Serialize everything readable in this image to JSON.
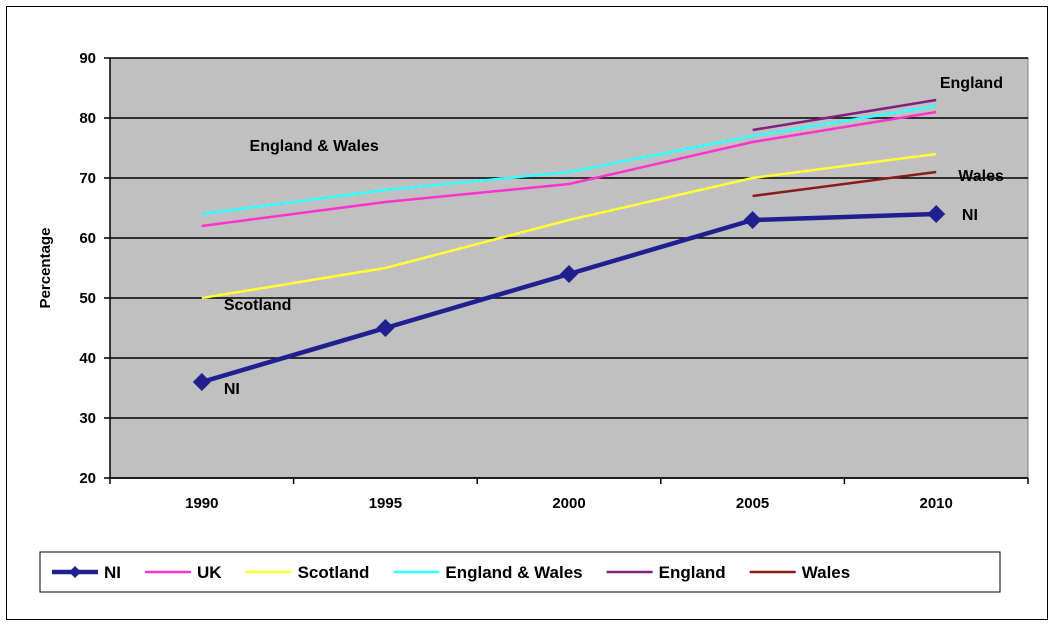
{
  "chart_data": {
    "type": "line",
    "title": "",
    "xlabel": "",
    "ylabel": "Percentage",
    "x": [
      1990,
      1995,
      2000,
      2005,
      2010
    ],
    "xticks": [
      "1990",
      "1995",
      "2000",
      "2005",
      "2010"
    ],
    "ylim": [
      20,
      90
    ],
    "yticks": [
      "20",
      "30",
      "40",
      "50",
      "60",
      "70",
      "80",
      "90"
    ],
    "grid": true,
    "legend": "bottom",
    "series": [
      {
        "name": "NI",
        "color": "#1f1f8f",
        "marker": "diamond",
        "x": [
          1990,
          1995,
          2000,
          2005,
          2010
        ],
        "values": [
          36,
          45,
          54,
          63,
          64
        ]
      },
      {
        "name": "UK",
        "color": "#ff33cc",
        "x": [
          1990,
          1995,
          2000,
          2005,
          2010
        ],
        "values": [
          62,
          66,
          69,
          76,
          81
        ]
      },
      {
        "name": "Scotland",
        "color": "#ffff33",
        "x": [
          1990,
          1995,
          2000,
          2005,
          2010
        ],
        "values": [
          50,
          55,
          63,
          70,
          74
        ]
      },
      {
        "name": "England & Wales",
        "color": "#33ffff",
        "x": [
          1990,
          1995,
          2000,
          2005,
          2010
        ],
        "values": [
          64,
          68,
          71,
          77,
          82
        ]
      },
      {
        "name": "England",
        "color": "#7f1f7f",
        "x": [
          2005,
          2010
        ],
        "values": [
          78,
          83
        ]
      },
      {
        "name": "Wales",
        "color": "#8b1a1a",
        "x": [
          2005,
          2010
        ],
        "values": [
          67,
          71
        ]
      }
    ],
    "annotations": [
      {
        "text": "England & Wales",
        "x": 1991.3,
        "y": 75.5
      },
      {
        "text": "Scotland",
        "x": 1990.6,
        "y": 49
      },
      {
        "text": "NI",
        "x": 1990.6,
        "y": 35
      },
      {
        "text": "England",
        "x": 2010.1,
        "y": 86
      },
      {
        "text": "Wales",
        "x": 2010.6,
        "y": 70.5
      },
      {
        "text": "NI",
        "x": 2010.7,
        "y": 64
      }
    ]
  }
}
